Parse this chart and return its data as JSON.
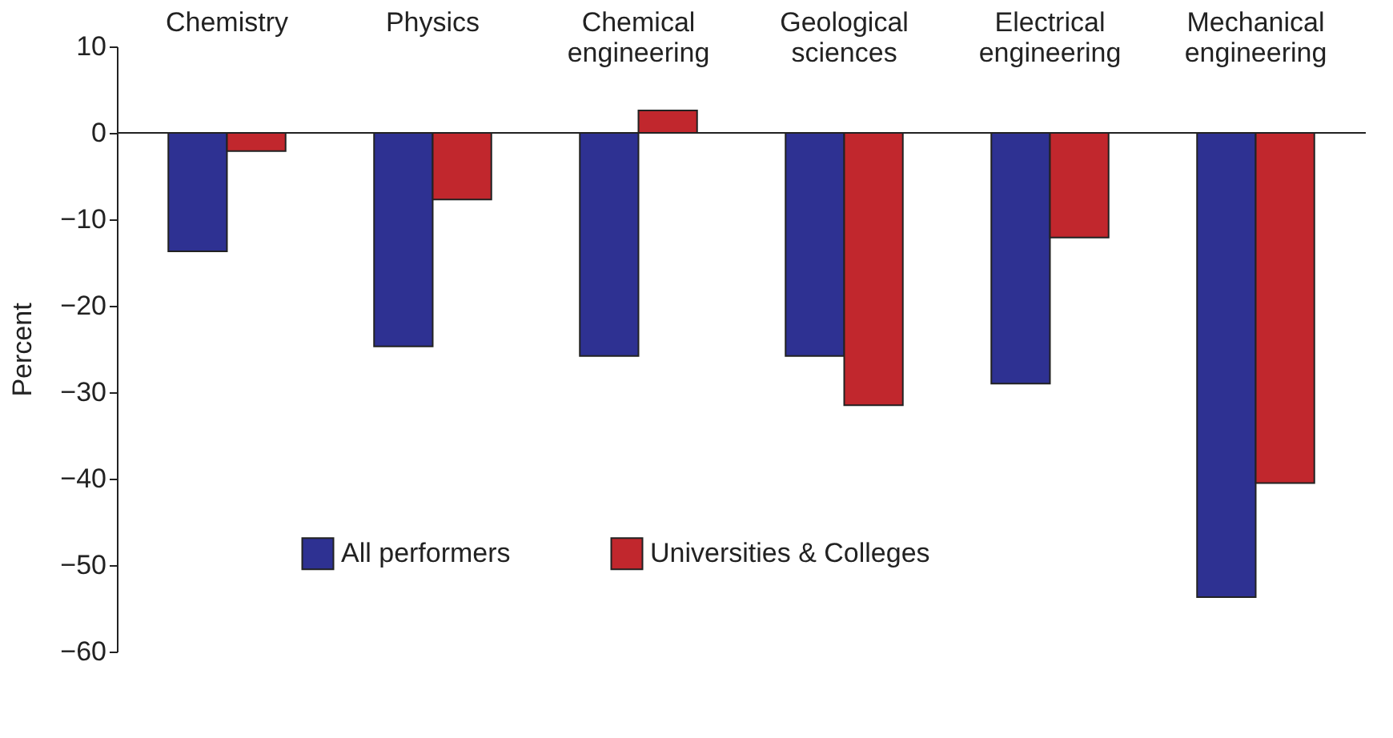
{
  "chart_data": {
    "type": "bar",
    "ylabel": "Percent",
    "categories": [
      "Chemistry",
      "Physics",
      "Chemical engineering",
      "Geological sciences",
      "Electrical engineering",
      "Mechanical engineering"
    ],
    "series": [
      {
        "name": "All performers",
        "color": "#2e3192",
        "values": [
          -13.7,
          -24.7,
          -25.8,
          -25.8,
          -29.0,
          -53.7
        ]
      },
      {
        "name": "Universities & Colleges",
        "color": "#c1272d",
        "values": [
          -2.1,
          -7.7,
          2.6,
          -31.5,
          -12.1,
          -40.5
        ]
      }
    ],
    "ylim": [
      -60,
      10
    ],
    "yticks": [
      -60,
      -50,
      -40,
      -30,
      -20,
      -10,
      0,
      10
    ],
    "grid": false,
    "legend": "bottom"
  }
}
